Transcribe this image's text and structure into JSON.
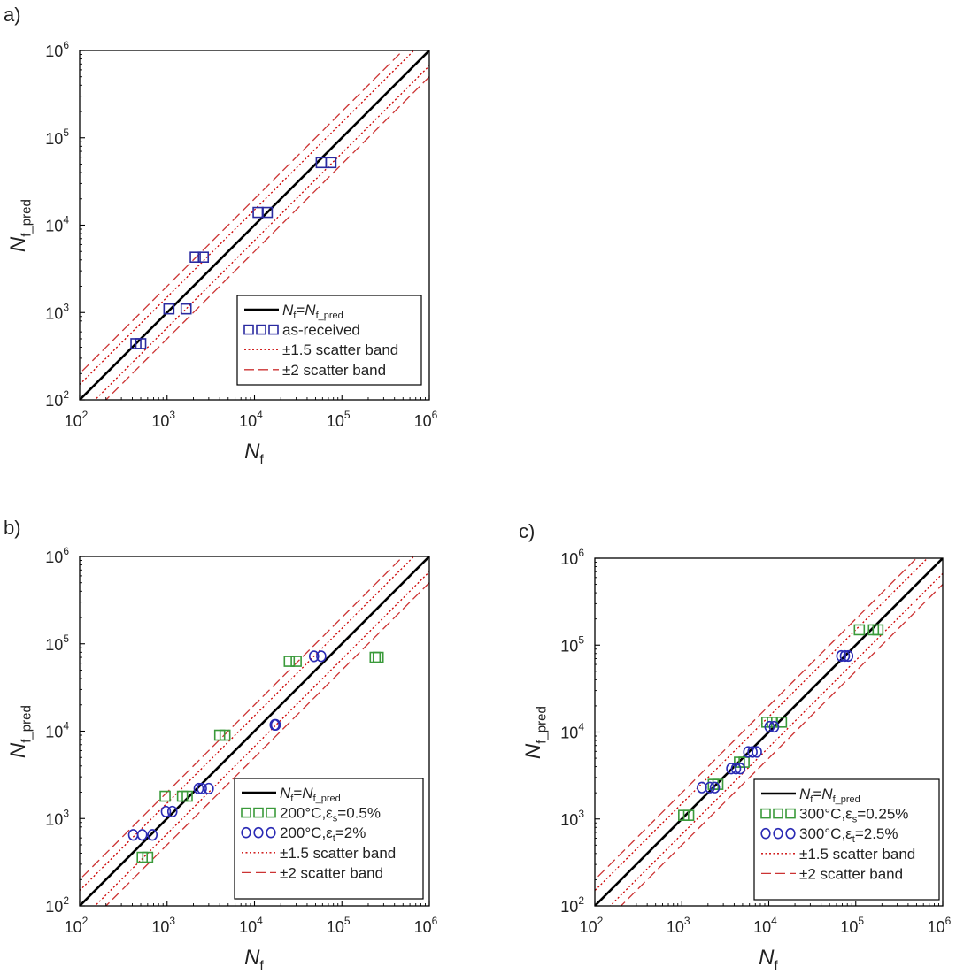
{
  "figure": {
    "panel_labels": [
      "a)",
      "b)",
      "c)"
    ]
  },
  "colors": {
    "identity": "#000000",
    "band15": "#cc0000",
    "band2": "#cc3333",
    "as_received": "#2a2aa0",
    "green": "#3a9a3a",
    "blue": "#2a2ab4",
    "axis": "#000000"
  },
  "chart_data": [
    {
      "panel": "a)",
      "type": "scatter",
      "scale": "log-log",
      "xlabel": {
        "main": "N",
        "sub": "f"
      },
      "ylabel": {
        "main": "N",
        "sub": "f_pred"
      },
      "xlim": [
        100,
        1000000
      ],
      "ylim": [
        100,
        1000000
      ],
      "ticks": [
        100,
        1000,
        10000,
        100000,
        1000000
      ],
      "tick_labels": [
        {
          "base": "10",
          "exp": "2"
        },
        {
          "base": "10",
          "exp": "3"
        },
        {
          "base": "10",
          "exp": "4"
        },
        {
          "base": "10",
          "exp": "5"
        },
        {
          "base": "10",
          "exp": "6"
        }
      ],
      "legend_position": "bottom-right",
      "lines": [
        {
          "key": "identity",
          "style": "solid",
          "factor": 1,
          "legend": {
            "main": "N",
            "sub": "f",
            "eq": "=",
            "main2": "N",
            "sub2": "f_pred"
          }
        },
        {
          "key": "band15",
          "style": "dotted",
          "factor": 1.5,
          "legend": {
            "text": "±1.5 scatter band"
          }
        },
        {
          "key": "band2",
          "style": "dashed",
          "factor": 2,
          "legend": {
            "text": "±2 scatter band"
          }
        }
      ],
      "series": [
        {
          "name": "as-received",
          "label": {
            "text": "as-received"
          },
          "marker": "square",
          "color": "as_received",
          "points": [
            [
              440,
              440
            ],
            [
              500,
              440
            ],
            [
              1050,
              1100
            ],
            [
              1650,
              1100
            ],
            [
              2100,
              4300
            ],
            [
              2600,
              4300
            ],
            [
              11000,
              14000
            ],
            [
              14000,
              14000
            ],
            [
              58000,
              52000
            ],
            [
              75000,
              52000
            ]
          ]
        }
      ]
    },
    {
      "panel": "b)",
      "type": "scatter",
      "scale": "log-log",
      "xlabel": {
        "main": "N",
        "sub": "f"
      },
      "ylabel": {
        "main": "N",
        "sub": "f_pred"
      },
      "xlim": [
        100,
        1000000
      ],
      "ylim": [
        100,
        1000000
      ],
      "ticks": [
        100,
        1000,
        10000,
        100000,
        1000000
      ],
      "tick_labels": [
        {
          "base": "10",
          "exp": "2"
        },
        {
          "base": "10",
          "exp": "3"
        },
        {
          "base": "10",
          "exp": "4"
        },
        {
          "base": "10",
          "exp": "5"
        },
        {
          "base": "10",
          "exp": "6"
        }
      ],
      "legend_position": "bottom-right",
      "lines": [
        {
          "key": "identity",
          "style": "solid",
          "factor": 1,
          "legend": {
            "main": "N",
            "sub": "f",
            "eq": "=",
            "main2": "N",
            "sub2": "f_pred"
          }
        },
        {
          "key": "band15",
          "style": "dotted",
          "factor": 1.5,
          "legend": {
            "text": "±1.5 scatter band"
          }
        },
        {
          "key": "band2",
          "style": "dashed",
          "factor": 2,
          "legend": {
            "text": "±2 scatter band"
          }
        }
      ],
      "series": [
        {
          "name": "200°C,εs=0.5%",
          "label": {
            "pre": "200°C,",
            "main": "ε",
            "sub": "s",
            "post": "=0.5%"
          },
          "marker": "square",
          "color": "green",
          "points": [
            [
              520,
              360
            ],
            [
              600,
              360
            ],
            [
              950,
              1800
            ],
            [
              1500,
              1800
            ],
            [
              1700,
              1800
            ],
            [
              4000,
              9000
            ],
            [
              4600,
              9000
            ],
            [
              25000,
              63000
            ],
            [
              30000,
              63000
            ],
            [
              240000,
              70000
            ],
            [
              260000,
              70000
            ]
          ]
        },
        {
          "name": "200°C,εt=2%",
          "label": {
            "pre": "200°C,",
            "main": "ε",
            "sub": "t",
            "post": "=2%"
          },
          "marker": "circle",
          "color": "blue",
          "points": [
            [
              410,
              650
            ],
            [
              520,
              650
            ],
            [
              680,
              650
            ],
            [
              970,
              1200
            ],
            [
              1150,
              1200
            ],
            [
              2300,
              2200
            ],
            [
              2500,
              2200
            ],
            [
              3000,
              2200
            ],
            [
              17000,
              11800
            ],
            [
              17500,
              11800
            ],
            [
              48000,
              72000
            ],
            [
              58000,
              72000
            ]
          ]
        }
      ]
    },
    {
      "panel": "c)",
      "type": "scatter",
      "scale": "log-log",
      "xlabel": {
        "main": "N",
        "sub": "f"
      },
      "ylabel": {
        "main": "N",
        "sub": "f_pred"
      },
      "xlim": [
        100,
        1000000
      ],
      "ylim": [
        100,
        1000000
      ],
      "ticks": [
        100,
        1000,
        10000,
        100000,
        1000000
      ],
      "tick_labels": [
        {
          "base": "10",
          "exp": "2"
        },
        {
          "base": "10",
          "exp": "3"
        },
        {
          "base": "10",
          "exp": "4"
        },
        {
          "base": "10",
          "exp": "5"
        },
        {
          "base": "10",
          "exp": "6"
        }
      ],
      "legend_position": "bottom-right",
      "lines": [
        {
          "key": "identity",
          "style": "solid",
          "factor": 1,
          "legend": {
            "main": "N",
            "sub": "f",
            "eq": "=",
            "main2": "N",
            "sub2": "f_pred"
          }
        },
        {
          "key": "band15",
          "style": "dotted",
          "factor": 1.5,
          "legend": {
            "text": "±1.5 scatter band"
          }
        },
        {
          "key": "band2",
          "style": "dashed",
          "factor": 2,
          "legend": {
            "text": "±2 scatter band"
          }
        }
      ],
      "series": [
        {
          "name": "300°C,εs=0.25%",
          "label": {
            "pre": "300°C,",
            "main": "ε",
            "sub": "s",
            "post": "=0.25%"
          },
          "marker": "square",
          "color": "green",
          "points": [
            [
              1050,
              1100
            ],
            [
              1200,
              1100
            ],
            [
              2300,
              2500
            ],
            [
              2600,
              2500
            ],
            [
              4600,
              4500
            ],
            [
              5200,
              4500
            ],
            [
              9500,
              13000
            ],
            [
              11000,
              13000
            ],
            [
              14000,
              13000
            ],
            [
              110000,
              150000
            ],
            [
              160000,
              150000
            ],
            [
              180000,
              150000
            ]
          ]
        },
        {
          "name": "300°C,εt=2.5%",
          "label": {
            "pre": "300°C,",
            "main": "ε",
            "sub": "t",
            "post": "=2.5%"
          },
          "marker": "circle",
          "color": "blue",
          "points": [
            [
              1700,
              2300
            ],
            [
              2100,
              2300
            ],
            [
              2400,
              2300
            ],
            [
              3700,
              3800
            ],
            [
              4200,
              3800
            ],
            [
              4700,
              3800
            ],
            [
              5800,
              5900
            ],
            [
              6500,
              5900
            ],
            [
              7300,
              5900
            ],
            [
              10200,
              11500
            ],
            [
              11500,
              11500
            ],
            [
              68000,
              75000
            ],
            [
              75000,
              75000
            ],
            [
              82000,
              75000
            ]
          ]
        }
      ]
    }
  ]
}
